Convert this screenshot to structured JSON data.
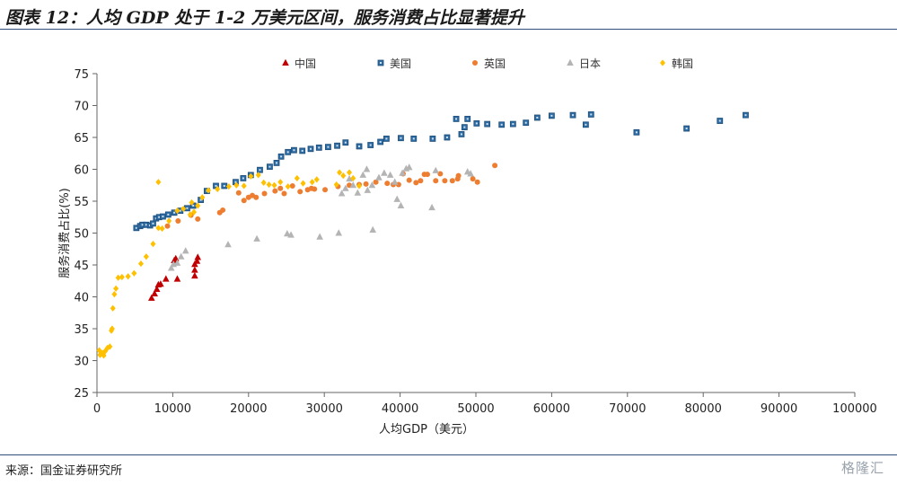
{
  "header": {
    "title": "图表 12：人均 GDP 处于 1-2 万美元区间，服务消费占比显著提升"
  },
  "footer": {
    "source": "来源：国金证券研究所",
    "watermark": "格隆汇"
  },
  "chart_data": {
    "type": "scatter",
    "title": "图表 12：人均 GDP 处于 1-2 万美元区间，服务消费占比显著提升",
    "xlabel": "人均GDP（美元）",
    "ylabel": "服务消费占比(%)",
    "xlim": [
      0,
      100000
    ],
    "ylim": [
      25,
      75
    ],
    "xticks": [
      0,
      10000,
      20000,
      30000,
      40000,
      50000,
      60000,
      70000,
      80000,
      90000,
      100000
    ],
    "yticks": [
      25,
      30,
      35,
      40,
      45,
      50,
      55,
      60,
      65,
      70,
      75
    ],
    "grid": false,
    "legend_position": "top",
    "series": [
      {
        "name": "中国",
        "marker": "triangle",
        "color": "#c00000",
        "points": [
          [
            7200,
            39.8
          ],
          [
            7600,
            40.5
          ],
          [
            7900,
            41.2
          ],
          [
            8100,
            41.9
          ],
          [
            8400,
            42.0
          ],
          [
            9100,
            42.8
          ],
          [
            10600,
            42.8
          ],
          [
            10200,
            45.7
          ],
          [
            10400,
            46.0
          ],
          [
            12900,
            43.3
          ],
          [
            12900,
            44.2
          ],
          [
            12900,
            45.1
          ],
          [
            13200,
            45.6
          ],
          [
            13300,
            46.2
          ]
        ]
      },
      {
        "name": "美国",
        "marker": "square",
        "color": "#2e6ca4",
        "points": [
          [
            5200,
            50.8
          ],
          [
            5700,
            51.1
          ],
          [
            6000,
            51.3
          ],
          [
            6500,
            51.3
          ],
          [
            7000,
            51.2
          ],
          [
            7400,
            51.5
          ],
          [
            7800,
            52.3
          ],
          [
            8200,
            52.5
          ],
          [
            8700,
            52.6
          ],
          [
            9400,
            52.9
          ],
          [
            10200,
            53.2
          ],
          [
            11000,
            53.5
          ],
          [
            11900,
            53.9
          ],
          [
            12700,
            54.3
          ],
          [
            13700,
            55.2
          ],
          [
            14500,
            56.6
          ],
          [
            15700,
            57.4
          ],
          [
            16800,
            57.4
          ],
          [
            18300,
            58.0
          ],
          [
            19300,
            58.6
          ],
          [
            20300,
            59.1
          ],
          [
            21500,
            59.9
          ],
          [
            22800,
            60.4
          ],
          [
            23700,
            61.0
          ],
          [
            24300,
            62.0
          ],
          [
            25200,
            62.7
          ],
          [
            26000,
            63.0
          ],
          [
            27100,
            62.9
          ],
          [
            28200,
            63.2
          ],
          [
            29300,
            63.4
          ],
          [
            30500,
            63.5
          ],
          [
            31700,
            63.7
          ],
          [
            32800,
            64.2
          ],
          [
            34600,
            63.6
          ],
          [
            36100,
            63.8
          ],
          [
            37400,
            64.3
          ],
          [
            38200,
            64.8
          ],
          [
            40100,
            64.9
          ],
          [
            41800,
            64.8
          ],
          [
            44300,
            64.8
          ],
          [
            46200,
            65.0
          ],
          [
            47400,
            67.9
          ],
          [
            48100,
            65.5
          ],
          [
            48500,
            66.6
          ],
          [
            48900,
            67.9
          ],
          [
            50100,
            67.2
          ],
          [
            51500,
            67.1
          ],
          [
            53400,
            67.0
          ],
          [
            54900,
            67.1
          ],
          [
            56600,
            67.3
          ],
          [
            58100,
            68.1
          ],
          [
            60000,
            68.4
          ],
          [
            62800,
            68.5
          ],
          [
            64500,
            67.0
          ],
          [
            65200,
            68.6
          ],
          [
            71200,
            65.8
          ],
          [
            77800,
            66.4
          ],
          [
            82200,
            67.6
          ],
          [
            85600,
            68.5
          ]
        ]
      },
      {
        "name": "英国",
        "marker": "circle",
        "color": "#ed7d31",
        "points": [
          [
            9300,
            51.1
          ],
          [
            10700,
            51.9
          ],
          [
            12400,
            52.8
          ],
          [
            13300,
            52.2
          ],
          [
            16200,
            53.2
          ],
          [
            16600,
            53.6
          ],
          [
            18700,
            56.3
          ],
          [
            19400,
            55.1
          ],
          [
            20000,
            55.6
          ],
          [
            20500,
            55.9
          ],
          [
            21000,
            55.6
          ],
          [
            22100,
            56.2
          ],
          [
            23500,
            56.6
          ],
          [
            24200,
            57.0
          ],
          [
            24700,
            56.2
          ],
          [
            25800,
            57.4
          ],
          [
            26800,
            56.5
          ],
          [
            27800,
            56.8
          ],
          [
            28300,
            57.0
          ],
          [
            28700,
            56.9
          ],
          [
            30100,
            56.8
          ],
          [
            31800,
            57.3
          ],
          [
            33300,
            57.5
          ],
          [
            34600,
            57.6
          ],
          [
            35500,
            57.7
          ],
          [
            36800,
            58.0
          ],
          [
            38300,
            57.8
          ],
          [
            39100,
            57.6
          ],
          [
            39800,
            57.6
          ],
          [
            40400,
            59.3
          ],
          [
            41200,
            58.3
          ],
          [
            42100,
            57.9
          ],
          [
            42700,
            58.2
          ],
          [
            43200,
            59.2
          ],
          [
            43600,
            59.2
          ],
          [
            44700,
            58.2
          ],
          [
            45300,
            59.3
          ],
          [
            45900,
            58.2
          ],
          [
            46900,
            58.2
          ],
          [
            47600,
            58.5
          ],
          [
            47700,
            59.0
          ],
          [
            49600,
            58.5
          ],
          [
            50200,
            58.0
          ],
          [
            52500,
            60.6
          ]
        ]
      },
      {
        "name": "日本",
        "marker": "triangle",
        "color": "#b4b4b4",
        "points": [
          [
            9800,
            44.5
          ],
          [
            10100,
            45.1
          ],
          [
            10600,
            45.3
          ],
          [
            11100,
            46.3
          ],
          [
            11700,
            47.2
          ],
          [
            17300,
            48.2
          ],
          [
            21100,
            49.1
          ],
          [
            25100,
            49.9
          ],
          [
            25600,
            49.7
          ],
          [
            29400,
            49.4
          ],
          [
            31900,
            50.0
          ],
          [
            36400,
            50.5
          ],
          [
            32300,
            56.2
          ],
          [
            32800,
            57.0
          ],
          [
            33300,
            58.5
          ],
          [
            33800,
            57.5
          ],
          [
            34400,
            56.3
          ],
          [
            35100,
            59.1
          ],
          [
            35600,
            60.0
          ],
          [
            35700,
            56.7
          ],
          [
            36300,
            57.5
          ],
          [
            37200,
            58.7
          ],
          [
            37900,
            59.4
          ],
          [
            38700,
            59.1
          ],
          [
            39300,
            58.0
          ],
          [
            39600,
            55.3
          ],
          [
            40100,
            54.3
          ],
          [
            40300,
            59.4
          ],
          [
            40800,
            60.1
          ],
          [
            41200,
            60.3
          ],
          [
            44200,
            54.0
          ],
          [
            44700,
            59.8
          ],
          [
            48900,
            59.6
          ],
          [
            49300,
            59.3
          ]
        ]
      },
      {
        "name": "韩国",
        "marker": "diamond",
        "color": "#ffc000",
        "points": [
          [
            300,
            31.6
          ],
          [
            400,
            30.9
          ],
          [
            500,
            31.0
          ],
          [
            700,
            31.2
          ],
          [
            900,
            30.8
          ],
          [
            1100,
            31.5
          ],
          [
            1400,
            32.0
          ],
          [
            1700,
            32.2
          ],
          [
            1900,
            34.7
          ],
          [
            2000,
            35.0
          ],
          [
            2100,
            38.2
          ],
          [
            2300,
            40.4
          ],
          [
            2500,
            41.3
          ],
          [
            2800,
            43.0
          ],
          [
            3300,
            43.1
          ],
          [
            4100,
            43.2
          ],
          [
            4900,
            43.7
          ],
          [
            5800,
            45.2
          ],
          [
            6500,
            46.3
          ],
          [
            7400,
            48.3
          ],
          [
            8100,
            50.8
          ],
          [
            8600,
            50.7
          ],
          [
            8100,
            58.0
          ],
          [
            9500,
            51.9
          ],
          [
            10600,
            53.5
          ],
          [
            11400,
            53.8
          ],
          [
            12300,
            52.9
          ],
          [
            12800,
            53.3
          ],
          [
            12500,
            54.8
          ],
          [
            13300,
            54.3
          ],
          [
            13900,
            55.6
          ],
          [
            14700,
            56.7
          ],
          [
            15900,
            56.9
          ],
          [
            17400,
            57.3
          ],
          [
            18400,
            57.5
          ],
          [
            19400,
            57.4
          ],
          [
            20300,
            58.9
          ],
          [
            21300,
            59.1
          ],
          [
            22000,
            57.9
          ],
          [
            22700,
            57.6
          ],
          [
            23400,
            57.5
          ],
          [
            24200,
            58.0
          ],
          [
            25200,
            57.3
          ],
          [
            26400,
            58.6
          ],
          [
            27200,
            57.8
          ],
          [
            28400,
            58.0
          ],
          [
            29000,
            58.4
          ],
          [
            31600,
            57.6
          ],
          [
            32000,
            59.5
          ],
          [
            32500,
            59.0
          ],
          [
            33300,
            59.5
          ],
          [
            33800,
            58.6
          ],
          [
            34600,
            57.4
          ]
        ]
      }
    ]
  }
}
